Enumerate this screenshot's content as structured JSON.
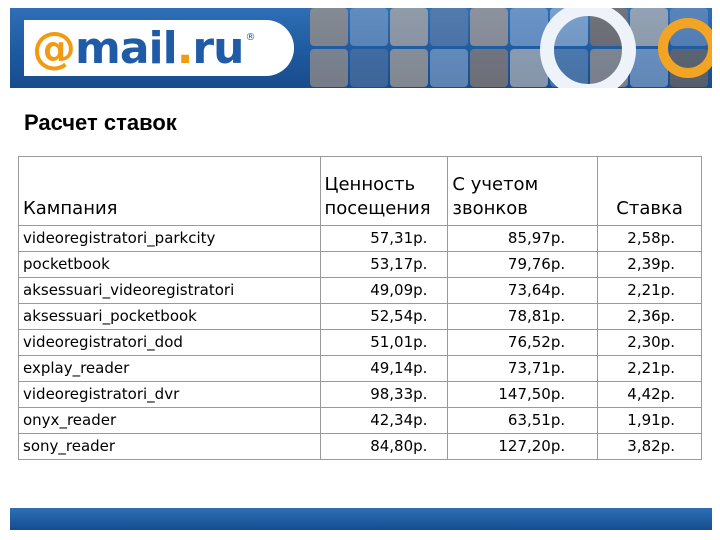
{
  "header": {
    "logo": {
      "at": "@",
      "brand": "mail",
      "dot": ".",
      "ru": "ru",
      "reg": "®"
    },
    "photo_colors": [
      "#c9a27a",
      "#8aa5c8",
      "#e0c0a0",
      "#6f86a8",
      "#d9b08c",
      "#9bb3d6",
      "#b8c8e0",
      "#a8794f",
      "#e5cdb4",
      "#7c98c0",
      "#c4a484",
      "#5d7aa3",
      "#d8b894",
      "#98b0d0",
      "#b48a66",
      "#e0d0c0",
      "#7090b8",
      "#caa888",
      "#a0b8d8",
      "#8c6c50"
    ],
    "accent_colors": {
      "blue": "#1f5ba6",
      "orange": "#f39a14"
    }
  },
  "page_title": "Расчет ставок",
  "table": {
    "headers": {
      "campaign": "Кампания",
      "value_line1": "Ценность",
      "value_line2": "посещения",
      "calls_line1": "С учетом",
      "calls_line2": "звонков",
      "rate": "Ставка"
    },
    "rows": [
      {
        "campaign": "videoregistratori_parkcity",
        "value": "57,31р.",
        "with_calls": "85,97р.",
        "rate": "2,58р."
      },
      {
        "campaign": "pocketbook",
        "value": "53,17р.",
        "with_calls": "79,76р.",
        "rate": "2,39р."
      },
      {
        "campaign": "aksessuari_videoregistratori",
        "value": "49,09р.",
        "with_calls": "73,64р.",
        "rate": "2,21р."
      },
      {
        "campaign": "aksessuari_pocketbook",
        "value": "52,54р.",
        "with_calls": "78,81р.",
        "rate": "2,36р."
      },
      {
        "campaign": "videoregistratori_dod",
        "value": "51,01р.",
        "with_calls": "76,52р.",
        "rate": "2,30р."
      },
      {
        "campaign": "explay_reader",
        "value": "49,14р.",
        "with_calls": "73,71р.",
        "rate": "2,21р."
      },
      {
        "campaign": "videoregistratori_dvr",
        "value": "98,33р.",
        "with_calls": "147,50р.",
        "rate": "4,42р."
      },
      {
        "campaign": "onyx_reader",
        "value": "42,34р.",
        "with_calls": "63,51р.",
        "rate": "1,91р."
      },
      {
        "campaign": "sony_reader",
        "value": "84,80р.",
        "with_calls": "127,20р.",
        "rate": "3,82р."
      }
    ]
  }
}
